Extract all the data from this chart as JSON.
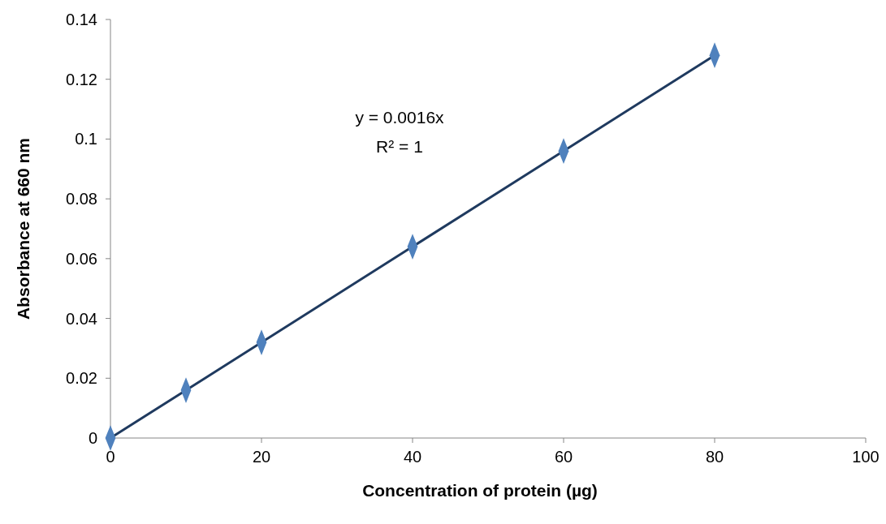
{
  "chart_data": {
    "type": "scatter",
    "xlabel": "Concentration of protein (µg)",
    "ylabel": "Absorbance at 660 nm",
    "annotations": [
      "y = 0.0016x",
      "R² = 1"
    ],
    "x": [
      0,
      10,
      20,
      40,
      60,
      80
    ],
    "series": [
      {
        "color": "#4f81bd",
        "values": [
          0,
          0.016,
          0.032,
          0.064,
          0.096,
          0.128
        ]
      },
      {
        "type": "line",
        "marker": "none",
        "color": "#1f3a5f",
        "x": [
          0,
          80
        ],
        "values": [
          0,
          0.128
        ]
      }
    ],
    "marker": "diamond",
    "xlim": [
      0,
      100
    ],
    "xticks": [
      0,
      20,
      40,
      60,
      80,
      100
    ],
    "ylim": [
      0,
      0.14
    ],
    "yticks": [
      0,
      0.02,
      0.04,
      0.06,
      0.08,
      0.1,
      0.12,
      0.14
    ]
  }
}
